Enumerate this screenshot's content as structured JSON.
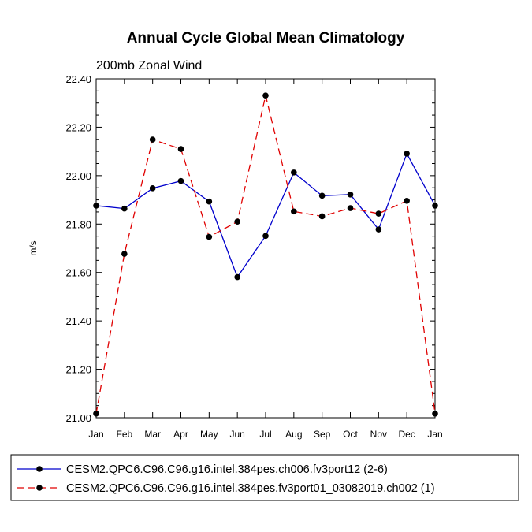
{
  "chart_data": {
    "type": "line",
    "title": "Annual Cycle Global Mean Climatology",
    "subtitle": "200mb Zonal Wind",
    "ylabel": "m/s",
    "xlabel": "",
    "ylim": [
      21.0,
      22.4
    ],
    "yticks": [
      "21.00",
      "21.20",
      "21.40",
      "21.60",
      "21.80",
      "22.00",
      "22.20",
      "22.40"
    ],
    "ytick_values": [
      21.0,
      21.2,
      21.4,
      21.6,
      21.8,
      22.0,
      22.2,
      22.4
    ],
    "categories": [
      "Jan",
      "Feb",
      "Mar",
      "Apr",
      "May",
      "Jun",
      "Jul",
      "Aug",
      "Sep",
      "Oct",
      "Nov",
      "Dec",
      "Jan"
    ],
    "series": [
      {
        "name": "CESM2.QPC6.C96.C96.g16.intel.384pes.ch006.fv3port12 (2-6)",
        "color": "#0000cc",
        "dash": "solid",
        "values": [
          21.876,
          21.864,
          21.948,
          21.978,
          21.893,
          21.581,
          21.751,
          22.013,
          21.917,
          21.922,
          21.778,
          22.091,
          21.876
        ]
      },
      {
        "name": "CESM2.QPC6.C96.C96.g16.intel.384pes.fv3port01_03082019.ch002 (1)",
        "color": "#e00000",
        "dash": "dashed",
        "values": [
          21.017,
          21.677,
          22.149,
          22.11,
          21.747,
          21.81,
          22.331,
          21.852,
          21.832,
          21.866,
          21.843,
          21.896,
          21.017
        ]
      }
    ],
    "legend_position": "bottom"
  }
}
